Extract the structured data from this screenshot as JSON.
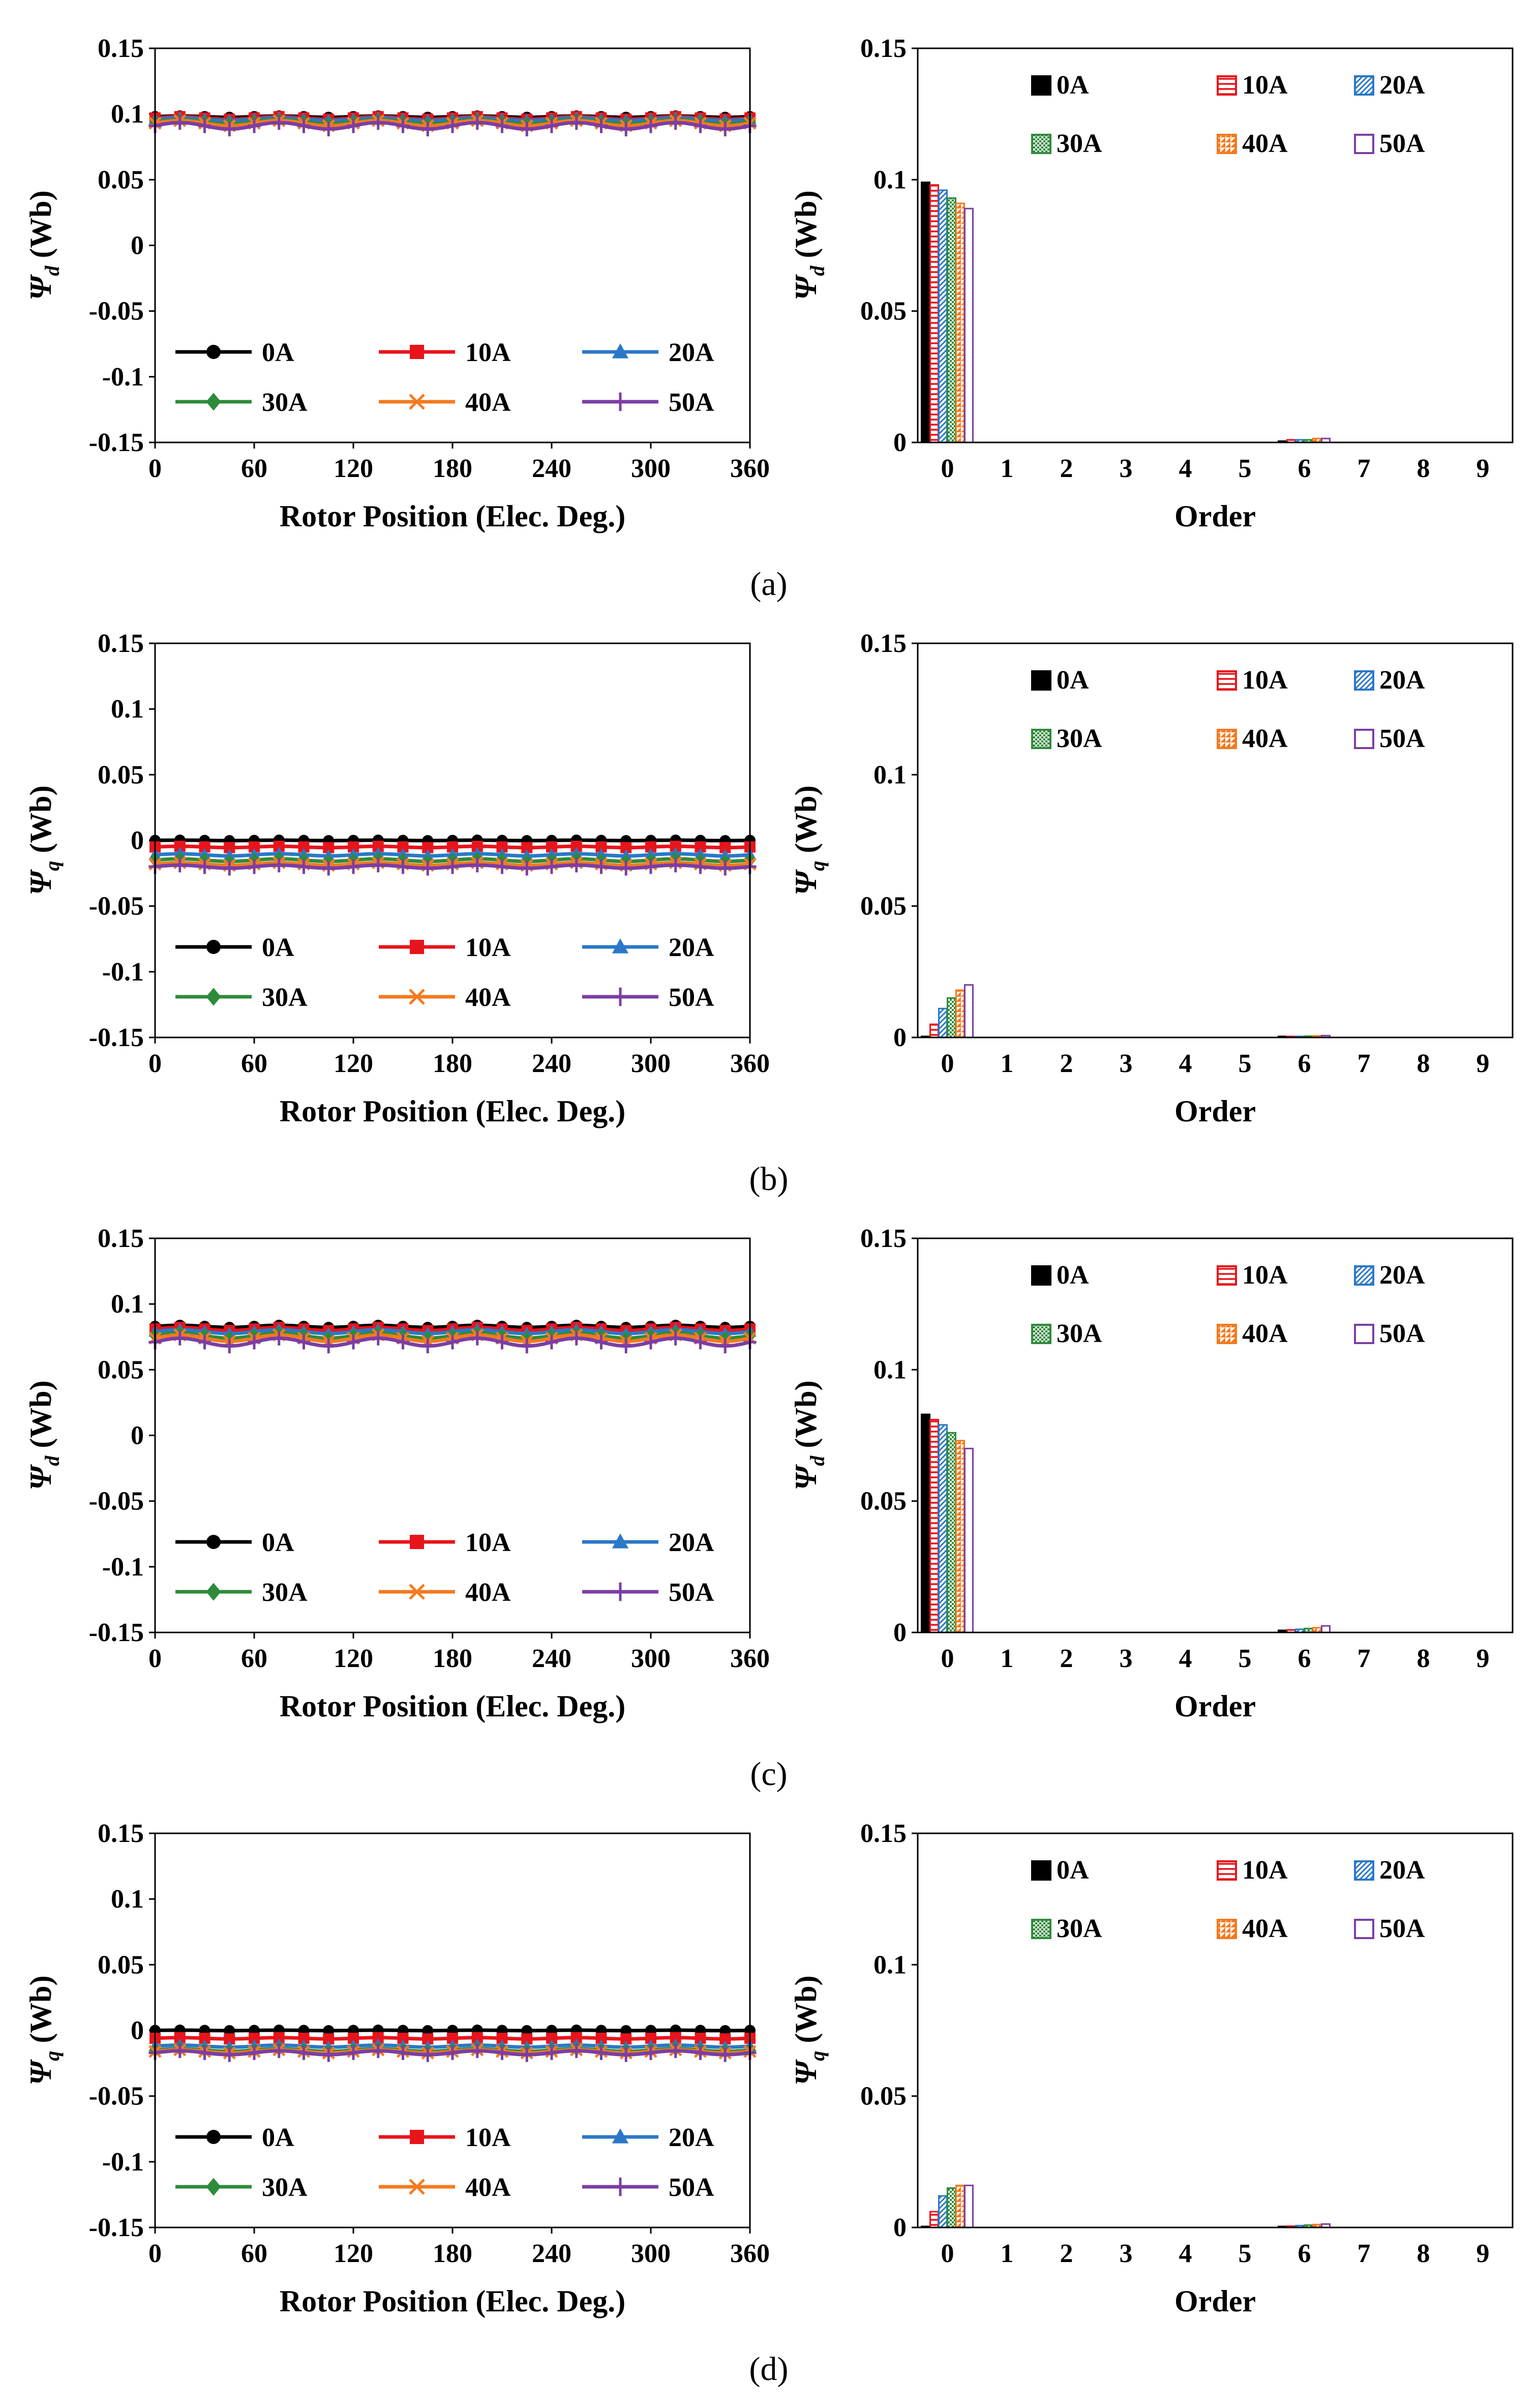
{
  "colors": {
    "0A": "#000000",
    "10A": "#e8141b",
    "20A": "#2a78c8",
    "30A": "#2e8b3a",
    "40A": "#f47a1f",
    "50A": "#7b3ea4"
  },
  "panels": [
    {
      "caption": "(a)",
      "line": {
        "type": "line",
        "ylabel_main": "Ψ",
        "ylabel_sub": "d",
        "ylabel_unit": " (Wb)",
        "xlabel": "Rotor Position (Elec. Deg.)",
        "xticks": [
          "0",
          "60",
          "120",
          "180",
          "240",
          "300",
          "360"
        ],
        "yticks": [
          "0.15",
          "0.1",
          "0.05",
          "0",
          "-0.05",
          "-0.1",
          "-0.15"
        ],
        "ylim": [
          -0.15,
          0.15
        ],
        "xlim": [
          0,
          360
        ],
        "series": [
          {
            "name": "0A",
            "marker": "circle",
            "mean": 0.098,
            "ripple": 0.0005
          },
          {
            "name": "10A",
            "marker": "square",
            "mean": 0.097,
            "ripple": 0.001
          },
          {
            "name": "20A",
            "marker": "triangle",
            "mean": 0.096,
            "ripple": 0.001
          },
          {
            "name": "30A",
            "marker": "diamond",
            "mean": 0.094,
            "ripple": 0.0015
          },
          {
            "name": "40A",
            "marker": "x",
            "mean": 0.093,
            "ripple": 0.002
          },
          {
            "name": "50A",
            "marker": "plus",
            "mean": 0.091,
            "ripple": 0.0025
          }
        ]
      },
      "bar": {
        "type": "bar",
        "ylabel_main": "Ψ",
        "ylabel_sub": "d",
        "ylabel_unit": " (Wb)",
        "xlabel": "Order",
        "categories": [
          "0",
          "1",
          "2",
          "3",
          "4",
          "5",
          "6",
          "7",
          "8",
          "9"
        ],
        "yticks": [
          "0.15",
          "0.1",
          "0.05",
          "0"
        ],
        "ylim": [
          0,
          0.15
        ],
        "series": [
          {
            "name": "0A",
            "values": [
              0.099,
              0,
              0,
              0,
              0,
              0,
              0.0005,
              0,
              0,
              0
            ]
          },
          {
            "name": "10A",
            "values": [
              0.098,
              0,
              0,
              0,
              0,
              0,
              0.001,
              0,
              0,
              0
            ]
          },
          {
            "name": "20A",
            "values": [
              0.096,
              0,
              0,
              0,
              0,
              0,
              0.001,
              0,
              0,
              0
            ]
          },
          {
            "name": "30A",
            "values": [
              0.093,
              0,
              0,
              0,
              0,
              0,
              0.001,
              0,
              0,
              0
            ]
          },
          {
            "name": "40A",
            "values": [
              0.091,
              0,
              0,
              0,
              0,
              0,
              0.0015,
              0,
              0,
              0
            ]
          },
          {
            "name": "50A",
            "values": [
              0.089,
              0,
              0,
              0,
              0,
              0,
              0.0015,
              0,
              0,
              0
            ]
          }
        ]
      }
    },
    {
      "caption": "(b)",
      "line": {
        "type": "line",
        "ylabel_main": "Ψ",
        "ylabel_sub": "q",
        "ylabel_unit": " (Wb)",
        "xlabel": "Rotor Position (Elec. Deg.)",
        "xticks": [
          "0",
          "60",
          "120",
          "180",
          "240",
          "300",
          "360"
        ],
        "yticks": [
          "0.15",
          "0.1",
          "0.05",
          "0",
          "-0.05",
          "-0.1",
          "-0.15"
        ],
        "ylim": [
          -0.15,
          0.15
        ],
        "xlim": [
          0,
          360
        ],
        "series": [
          {
            "name": "0A",
            "marker": "circle",
            "mean": 0.0,
            "ripple": 0.0002
          },
          {
            "name": "10A",
            "marker": "square",
            "mean": -0.005,
            "ripple": 0.0005
          },
          {
            "name": "20A",
            "marker": "triangle",
            "mean": -0.011,
            "ripple": 0.0008
          },
          {
            "name": "30A",
            "marker": "diamond",
            "mean": -0.015,
            "ripple": 0.001
          },
          {
            "name": "40A",
            "marker": "x",
            "mean": -0.018,
            "ripple": 0.001
          },
          {
            "name": "50A",
            "marker": "plus",
            "mean": -0.02,
            "ripple": 0.0012
          }
        ]
      },
      "bar": {
        "type": "bar",
        "ylabel_main": "Ψ",
        "ylabel_sub": "q",
        "ylabel_unit": " (Wb)",
        "xlabel": "Order",
        "categories": [
          "0",
          "1",
          "2",
          "3",
          "4",
          "5",
          "6",
          "7",
          "8",
          "9"
        ],
        "yticks": [
          "0.15",
          "0.1",
          "0.05",
          "0"
        ],
        "ylim": [
          0,
          0.15
        ],
        "series": [
          {
            "name": "0A",
            "values": [
              0.0003,
              0,
              0,
              0,
              0,
              0,
              0.0002,
              0,
              0,
              0
            ]
          },
          {
            "name": "10A",
            "values": [
              0.005,
              0,
              0,
              0,
              0,
              0,
              0.0003,
              0,
              0,
              0
            ]
          },
          {
            "name": "20A",
            "values": [
              0.011,
              0,
              0,
              0,
              0,
              0,
              0.0004,
              0,
              0,
              0
            ]
          },
          {
            "name": "30A",
            "values": [
              0.015,
              0,
              0,
              0,
              0,
              0,
              0.0005,
              0,
              0,
              0
            ]
          },
          {
            "name": "40A",
            "values": [
              0.018,
              0,
              0,
              0,
              0,
              0,
              0.0006,
              0,
              0,
              0
            ]
          },
          {
            "name": "50A",
            "values": [
              0.02,
              0,
              0,
              0,
              0,
              0,
              0.0007,
              0,
              0,
              0
            ]
          }
        ]
      }
    },
    {
      "caption": "(c)",
      "line": {
        "type": "line",
        "ylabel_main": "Ψ",
        "ylabel_sub": "d",
        "ylabel_unit": " (Wb)",
        "xlabel": "Rotor Position (Elec. Deg.)",
        "xticks": [
          "0",
          "60",
          "120",
          "180",
          "240",
          "300",
          "360"
        ],
        "yticks": [
          "0.15",
          "0.1",
          "0.05",
          "0",
          "-0.05",
          "-0.1",
          "-0.15"
        ],
        "ylim": [
          -0.15,
          0.15
        ],
        "xlim": [
          0,
          360
        ],
        "series": [
          {
            "name": "0A",
            "marker": "circle",
            "mean": 0.083,
            "ripple": 0.0008
          },
          {
            "name": "10A",
            "marker": "square",
            "mean": 0.081,
            "ripple": 0.0012
          },
          {
            "name": "20A",
            "marker": "triangle",
            "mean": 0.079,
            "ripple": 0.0015
          },
          {
            "name": "30A",
            "marker": "diamond",
            "mean": 0.076,
            "ripple": 0.002
          },
          {
            "name": "40A",
            "marker": "x",
            "mean": 0.074,
            "ripple": 0.0025
          },
          {
            "name": "50A",
            "marker": "plus",
            "mean": 0.071,
            "ripple": 0.003
          }
        ]
      },
      "bar": {
        "type": "bar",
        "ylabel_main": "Ψ",
        "ylabel_sub": "d",
        "ylabel_unit": " (Wb)",
        "xlabel": "Order",
        "categories": [
          "0",
          "1",
          "2",
          "3",
          "4",
          "5",
          "6",
          "7",
          "8",
          "9"
        ],
        "yticks": [
          "0.15",
          "0.1",
          "0.05",
          "0"
        ],
        "ylim": [
          0,
          0.15
        ],
        "series": [
          {
            "name": "0A",
            "values": [
              0.083,
              0,
              0,
              0,
              0,
              0,
              0.0008,
              0,
              0,
              0
            ]
          },
          {
            "name": "10A",
            "values": [
              0.081,
              0,
              0,
              0,
              0,
              0,
              0.001,
              0,
              0,
              0
            ]
          },
          {
            "name": "20A",
            "values": [
              0.079,
              0,
              0,
              0,
              0,
              0,
              0.0012,
              0,
              0,
              0
            ]
          },
          {
            "name": "30A",
            "values": [
              0.076,
              0,
              0,
              0,
              0,
              0,
              0.0015,
              0,
              0,
              0
            ]
          },
          {
            "name": "40A",
            "values": [
              0.073,
              0,
              0,
              0,
              0,
              0,
              0.0018,
              0,
              0,
              0
            ]
          },
          {
            "name": "50A",
            "values": [
              0.07,
              0,
              0,
              0,
              0,
              0,
              0.0025,
              0,
              0,
              0
            ]
          }
        ]
      }
    },
    {
      "caption": "(d)",
      "line": {
        "type": "line",
        "ylabel_main": "Ψ",
        "ylabel_sub": "q",
        "ylabel_unit": " (Wb)",
        "xlabel": "Rotor Position (Elec. Deg.)",
        "xticks": [
          "0",
          "60",
          "120",
          "180",
          "240",
          "300",
          "360"
        ],
        "yticks": [
          "0.15",
          "0.1",
          "0.05",
          "0",
          "-0.05",
          "-0.1",
          "-0.15"
        ],
        "ylim": [
          -0.15,
          0.15
        ],
        "xlim": [
          0,
          360
        ],
        "series": [
          {
            "name": "0A",
            "marker": "circle",
            "mean": 0.0,
            "ripple": 0.0002
          },
          {
            "name": "10A",
            "marker": "square",
            "mean": -0.006,
            "ripple": 0.0005
          },
          {
            "name": "20A",
            "marker": "triangle",
            "mean": -0.012,
            "ripple": 0.0008
          },
          {
            "name": "30A",
            "marker": "diamond",
            "mean": -0.015,
            "ripple": 0.001
          },
          {
            "name": "40A",
            "marker": "x",
            "mean": -0.016,
            "ripple": 0.0012
          },
          {
            "name": "50A",
            "marker": "plus",
            "mean": -0.017,
            "ripple": 0.0015
          }
        ]
      },
      "bar": {
        "type": "bar",
        "ylabel_main": "Ψ",
        "ylabel_sub": "q",
        "ylabel_unit": " (Wb)",
        "xlabel": "Order",
        "categories": [
          "0",
          "1",
          "2",
          "3",
          "4",
          "5",
          "6",
          "7",
          "8",
          "9"
        ],
        "yticks": [
          "0.15",
          "0.1",
          "0.05",
          "0"
        ],
        "ylim": [
          0,
          0.15
        ],
        "series": [
          {
            "name": "0A",
            "values": [
              0.0003,
              0,
              0,
              0,
              0,
              0,
              0.0003,
              0,
              0,
              0
            ]
          },
          {
            "name": "10A",
            "values": [
              0.006,
              0,
              0,
              0,
              0,
              0,
              0.0005,
              0,
              0,
              0
            ]
          },
          {
            "name": "20A",
            "values": [
              0.012,
              0,
              0,
              0,
              0,
              0,
              0.0007,
              0,
              0,
              0
            ]
          },
          {
            "name": "30A",
            "values": [
              0.015,
              0,
              0,
              0,
              0,
              0,
              0.0009,
              0,
              0,
              0
            ]
          },
          {
            "name": "40A",
            "values": [
              0.016,
              0,
              0,
              0,
              0,
              0,
              0.0011,
              0,
              0,
              0
            ]
          },
          {
            "name": "50A",
            "values": [
              0.016,
              0,
              0,
              0,
              0,
              0,
              0.0013,
              0,
              0,
              0
            ]
          }
        ]
      }
    }
  ]
}
